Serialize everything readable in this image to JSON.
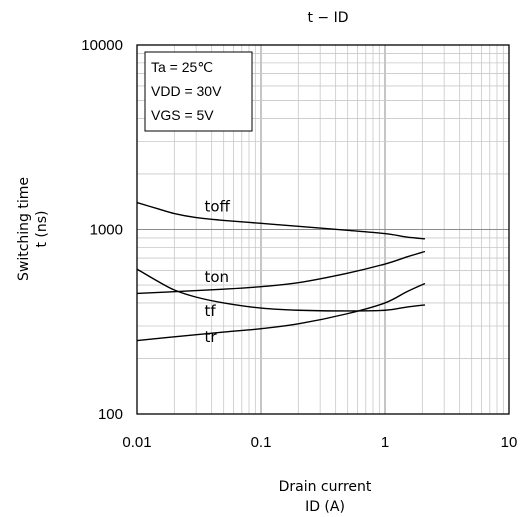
{
  "chart_data": {
    "type": "line",
    "title": "t − ID",
    "xlabel": [
      "Drain current",
      "ID (A)"
    ],
    "ylabel": [
      "Switching time",
      "t (ns)"
    ],
    "x_scale": "log",
    "y_scale": "log",
    "xlim": [
      0.01,
      10
    ],
    "ylim": [
      100,
      10000
    ],
    "x_ticks": [
      "0.01",
      "0.1",
      "1",
      "10"
    ],
    "y_ticks": [
      "100",
      "1000",
      "10000"
    ],
    "grid": true,
    "conditions": [
      "Ta = 25℃",
      "VDD = 30V",
      "VGS = 5V"
    ],
    "legend_position": "top-left",
    "series": [
      {
        "name": "toff",
        "label_at": [
          0.035,
          1250
        ],
        "x": [
          0.01,
          0.015,
          0.02,
          0.03,
          0.05,
          0.1,
          0.2,
          0.5,
          1,
          1.5,
          2.1
        ],
        "y": [
          1400,
          1290,
          1220,
          1160,
          1120,
          1080,
          1040,
          990,
          950,
          910,
          890
        ]
      },
      {
        "name": "ton",
        "label_at": [
          0.035,
          520
        ],
        "x": [
          0.01,
          0.02,
          0.05,
          0.1,
          0.2,
          0.5,
          1,
          1.5,
          2.1
        ],
        "y": [
          450,
          460,
          475,
          490,
          515,
          580,
          650,
          710,
          760
        ]
      },
      {
        "name": "tf",
        "label_at": [
          0.035,
          340
        ],
        "x": [
          0.01,
          0.015,
          0.02,
          0.03,
          0.05,
          0.1,
          0.2,
          0.5,
          1,
          1.5,
          2.1
        ],
        "y": [
          610,
          520,
          470,
          430,
          400,
          375,
          365,
          362,
          365,
          380,
          390
        ]
      },
      {
        "name": "tr",
        "label_at": [
          0.035,
          245
        ],
        "x": [
          0.01,
          0.02,
          0.05,
          0.1,
          0.2,
          0.5,
          1,
          1.5,
          2.1
        ],
        "y": [
          250,
          262,
          278,
          290,
          308,
          350,
          400,
          460,
          510
        ]
      }
    ]
  }
}
